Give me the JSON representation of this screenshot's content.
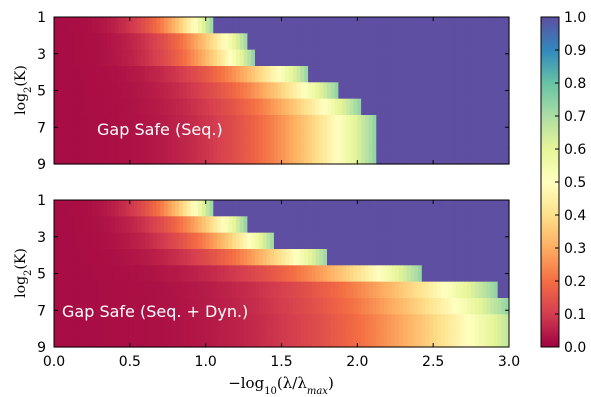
{
  "chart_data": [
    {
      "type": "heatmap",
      "panel": "top",
      "annotation": "Gap Safe (Seq.)",
      "ylabel_base": "log",
      "ylabel_sub": "2",
      "ylabel_arg": "(K)",
      "y_ticks": [
        "1",
        "3",
        "5",
        "7",
        "9"
      ],
      "ylim": [
        1,
        9
      ],
      "xlim": [
        0,
        3
      ],
      "rows_K": [
        1,
        2,
        3,
        4,
        5,
        6,
        7,
        8,
        9
      ],
      "transition_x": [
        1.05,
        1.28,
        1.32,
        1.68,
        1.87,
        2.02,
        2.12,
        2.12,
        2.12
      ],
      "value_scale": "fraction screened; 0 left, rises toward 1 near the transition point, 1 beyond"
    },
    {
      "type": "heatmap",
      "panel": "bottom",
      "annotation": "Gap Safe (Seq. + Dyn.)",
      "ylabel_base": "log",
      "ylabel_sub": "2",
      "ylabel_arg": "(K)",
      "y_ticks": [
        "1",
        "3",
        "5",
        "7",
        "9"
      ],
      "ylim": [
        1,
        9
      ],
      "xlim": [
        0,
        3
      ],
      "x_ticks": [
        "0.0",
        "0.5",
        "1.0",
        "1.5",
        "2.0",
        "2.5",
        "3.0"
      ],
      "xlabel_prefix": "−log",
      "xlabel_sub": "10",
      "xlabel_arg": "(λ/λ",
      "xlabel_argsub": "max",
      "xlabel_close": ")",
      "rows_K": [
        1,
        2,
        3,
        4,
        5,
        6,
        7,
        8,
        9
      ],
      "transition_x": [
        1.05,
        1.27,
        1.46,
        1.81,
        2.43,
        2.92,
        3.0,
        3.1,
        3.1
      ],
      "value_scale": "fraction screened; 0 left, rises toward 1 near the transition point, 1 beyond"
    }
  ],
  "colorbar": {
    "colormap": "Spectral",
    "ticks": [
      "0.0",
      "0.1",
      "0.2",
      "0.3",
      "0.4",
      "0.5",
      "0.6",
      "0.7",
      "0.8",
      "0.9",
      "1.0"
    ],
    "range": [
      0,
      1
    ]
  }
}
